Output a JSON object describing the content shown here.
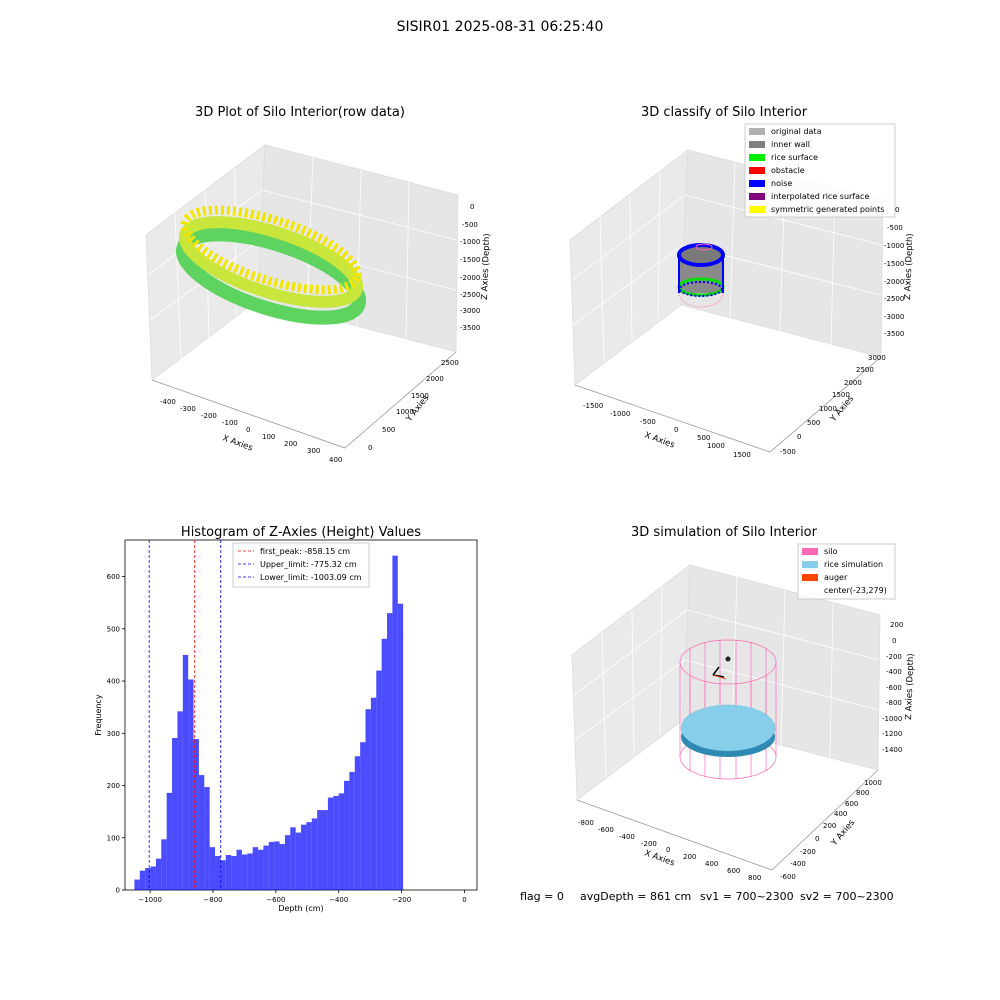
{
  "figure": {
    "suptitle": "SISIR01 2025-08-31 06:25:40",
    "footer": {
      "flag": "flag = 0",
      "avg_depth": "avgDepth = 861 cm",
      "sv1": "sv1 = 700~2300",
      "sv2": "sv2 = 700~2300"
    }
  },
  "panels": {
    "raw": {
      "title": "3D Plot of Silo Interior(row data)",
      "xlabel": "X Axies",
      "ylabel": "Y Axies",
      "zlabel": "Z Axies (Depth)",
      "xticks": [
        "-400",
        "-300",
        "-200",
        "-100",
        "0",
        "100",
        "200",
        "300",
        "400"
      ],
      "yticks": [
        "0",
        "500",
        "1000",
        "1500",
        "2000",
        "2500"
      ],
      "zticks": [
        "0",
        "-500",
        "-1000",
        "-1500",
        "-2000",
        "-2500",
        "-3000",
        "-3500"
      ]
    },
    "classify": {
      "title": "3D classify of Silo Interior",
      "xlabel": "X Axies",
      "ylabel": "Y Axies",
      "zlabel": "Z Axies (Depth)",
      "xticks": [
        "-1500",
        "-1000",
        "-500",
        "0",
        "500",
        "1000",
        "1500"
      ],
      "yticks": [
        "-500",
        "0",
        "500",
        "1000",
        "1500",
        "2000",
        "2500",
        "3000"
      ],
      "zticks": [
        "0",
        "-500",
        "-1000",
        "-1500",
        "-2000",
        "-2500",
        "-3000",
        "-3500"
      ],
      "legend": [
        {
          "label": "original data",
          "color": "#b0b0b0"
        },
        {
          "label": "inner wall",
          "color": "#808080"
        },
        {
          "label": "rice surface",
          "color": "#00ee00"
        },
        {
          "label": "obstacle",
          "color": "#ff0000"
        },
        {
          "label": "noise",
          "color": "#0000ff"
        },
        {
          "label": "interpolated rice surface",
          "color": "#800080"
        },
        {
          "label": "symmetric generated points",
          "color": "#ffff00"
        }
      ]
    },
    "sim": {
      "title": "3D simulation of Silo Interior",
      "xlabel": "X Axies",
      "ylabel": "Y Axies",
      "zlabel": "Z Axies (Depth)",
      "xticks": [
        "-800",
        "-600",
        "-400",
        "-200",
        "0",
        "200",
        "400",
        "600",
        "800"
      ],
      "yticks": [
        "-600",
        "-400",
        "-200",
        "0",
        "200",
        "400",
        "600",
        "800",
        "1000"
      ],
      "zticks": [
        "200",
        "0",
        "-200",
        "-400",
        "-600",
        "-800",
        "-1000",
        "-1200",
        "-1400"
      ],
      "legend": [
        {
          "label": "silo",
          "color": "#ff69b4"
        },
        {
          "label": "rice simulation",
          "color": "#87ceeb"
        },
        {
          "label": "auger",
          "color": "#ff4500"
        },
        {
          "label": "center(-23,279)",
          "color": ""
        }
      ]
    }
  },
  "chart_data": {
    "type": "bar",
    "title": "Histogram of Z-Axies (Height) Values",
    "xlabel": "Depth (cm)",
    "ylabel": "Frequency",
    "xlim": [
      -1080,
      40
    ],
    "ylim": [
      0,
      670
    ],
    "xticks": [
      -1000,
      -800,
      -600,
      -400,
      -200,
      0
    ],
    "yticks": [
      0,
      100,
      200,
      300,
      400,
      500,
      600
    ],
    "bin_start": -1050,
    "bin_width": 17.1,
    "bar_color": "#0000ff",
    "values": [
      20,
      37,
      42,
      45,
      60,
      97,
      186,
      291,
      342,
      450,
      403,
      289,
      220,
      197,
      82,
      65,
      57,
      67,
      65,
      77,
      68,
      70,
      82,
      77,
      85,
      92,
      93,
      88,
      105,
      120,
      110,
      125,
      130,
      137,
      153,
      153,
      177,
      180,
      185,
      209,
      226,
      256,
      283,
      346,
      368,
      420,
      481,
      530,
      640,
      548
    ],
    "lines": [
      {
        "label": "first_peak: -858.15 cm",
        "value": -858.15,
        "color": "#ff0000"
      },
      {
        "label": "Upper_limit: -775.32 cm",
        "value": -775.32,
        "color": "#0000ff"
      },
      {
        "label": "Lower_limit: -1003.09 cm",
        "value": -1003.09,
        "color": "#0000ff"
      }
    ]
  }
}
